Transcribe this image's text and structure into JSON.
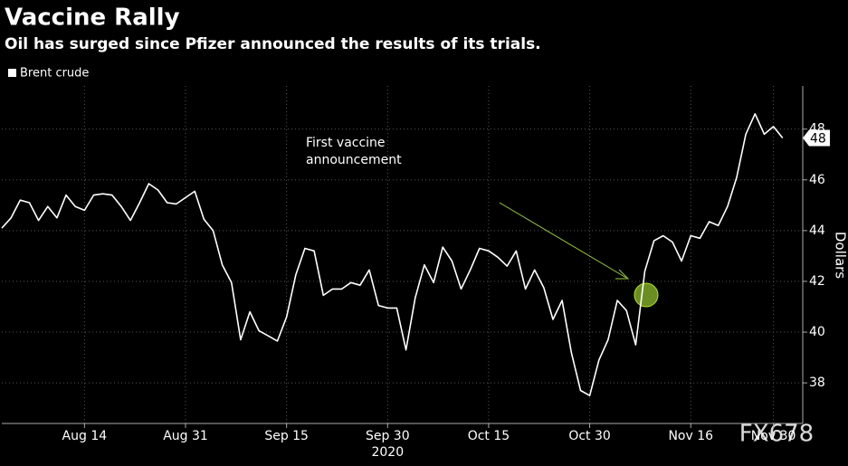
{
  "chart_data": {
    "type": "line",
    "title": "Vaccine Rally",
    "subtitle": "Oil has surged since Pfizer announced the results of its trials.",
    "y_label": "Dollars",
    "year_label": "2020",
    "annotation": "First vaccine announcement",
    "last_value_label": "48",
    "watermark": "FX678",
    "categories": [
      null,
      null,
      null,
      null,
      null,
      null,
      null,
      null,
      null,
      "Aug 14",
      null,
      null,
      null,
      null,
      null,
      null,
      null,
      null,
      null,
      null,
      "Aug 31",
      null,
      null,
      null,
      null,
      null,
      null,
      null,
      null,
      null,
      null,
      "Sep 15",
      null,
      null,
      null,
      null,
      null,
      null,
      null,
      null,
      null,
      null,
      "Sep 30",
      null,
      null,
      null,
      null,
      null,
      null,
      null,
      null,
      null,
      null,
      "Oct 15",
      null,
      null,
      null,
      null,
      null,
      null,
      null,
      null,
      null,
      null,
      "Oct 30",
      null,
      null,
      null,
      null,
      null,
      null,
      null,
      null,
      null,
      null,
      "Nov 16",
      null,
      null,
      null,
      null,
      null,
      null,
      null,
      null,
      "Nov 30",
      null
    ],
    "series": [
      {
        "name": "Brent crude",
        "color": "#ffffff",
        "values": [
          44.1,
          44.5,
          45.2,
          45.1,
          44.4,
          44.95,
          44.5,
          45.4,
          44.95,
          44.8,
          45.4,
          45.45,
          45.4,
          44.95,
          44.4,
          45.1,
          45.85,
          45.6,
          45.1,
          45.05,
          45.3,
          45.55,
          44.45,
          44.0,
          42.65,
          41.95,
          39.7,
          40.8,
          40.05,
          39.85,
          39.65,
          40.6,
          42.25,
          43.3,
          43.2,
          41.45,
          41.7,
          41.7,
          41.95,
          41.85,
          42.45,
          41.05,
          40.95,
          40.95,
          39.3,
          41.35,
          42.65,
          41.95,
          43.35,
          42.8,
          41.7,
          42.45,
          43.3,
          43.2,
          42.95,
          42.6,
          43.2,
          41.7,
          42.45,
          41.75,
          40.5,
          41.25,
          39.2,
          37.7,
          37.5,
          38.9,
          39.7,
          41.25,
          40.85,
          39.5,
          42.4,
          43.6,
          43.8,
          43.55,
          42.8,
          43.8,
          43.7,
          44.35,
          44.2,
          44.95,
          46.1,
          47.8,
          48.6,
          47.8,
          48.1,
          47.65
        ]
      }
    ],
    "ylim": [
      36.4,
      49.7
    ],
    "yticks": [
      38,
      40,
      42,
      44,
      46,
      48
    ],
    "grid": true
  }
}
